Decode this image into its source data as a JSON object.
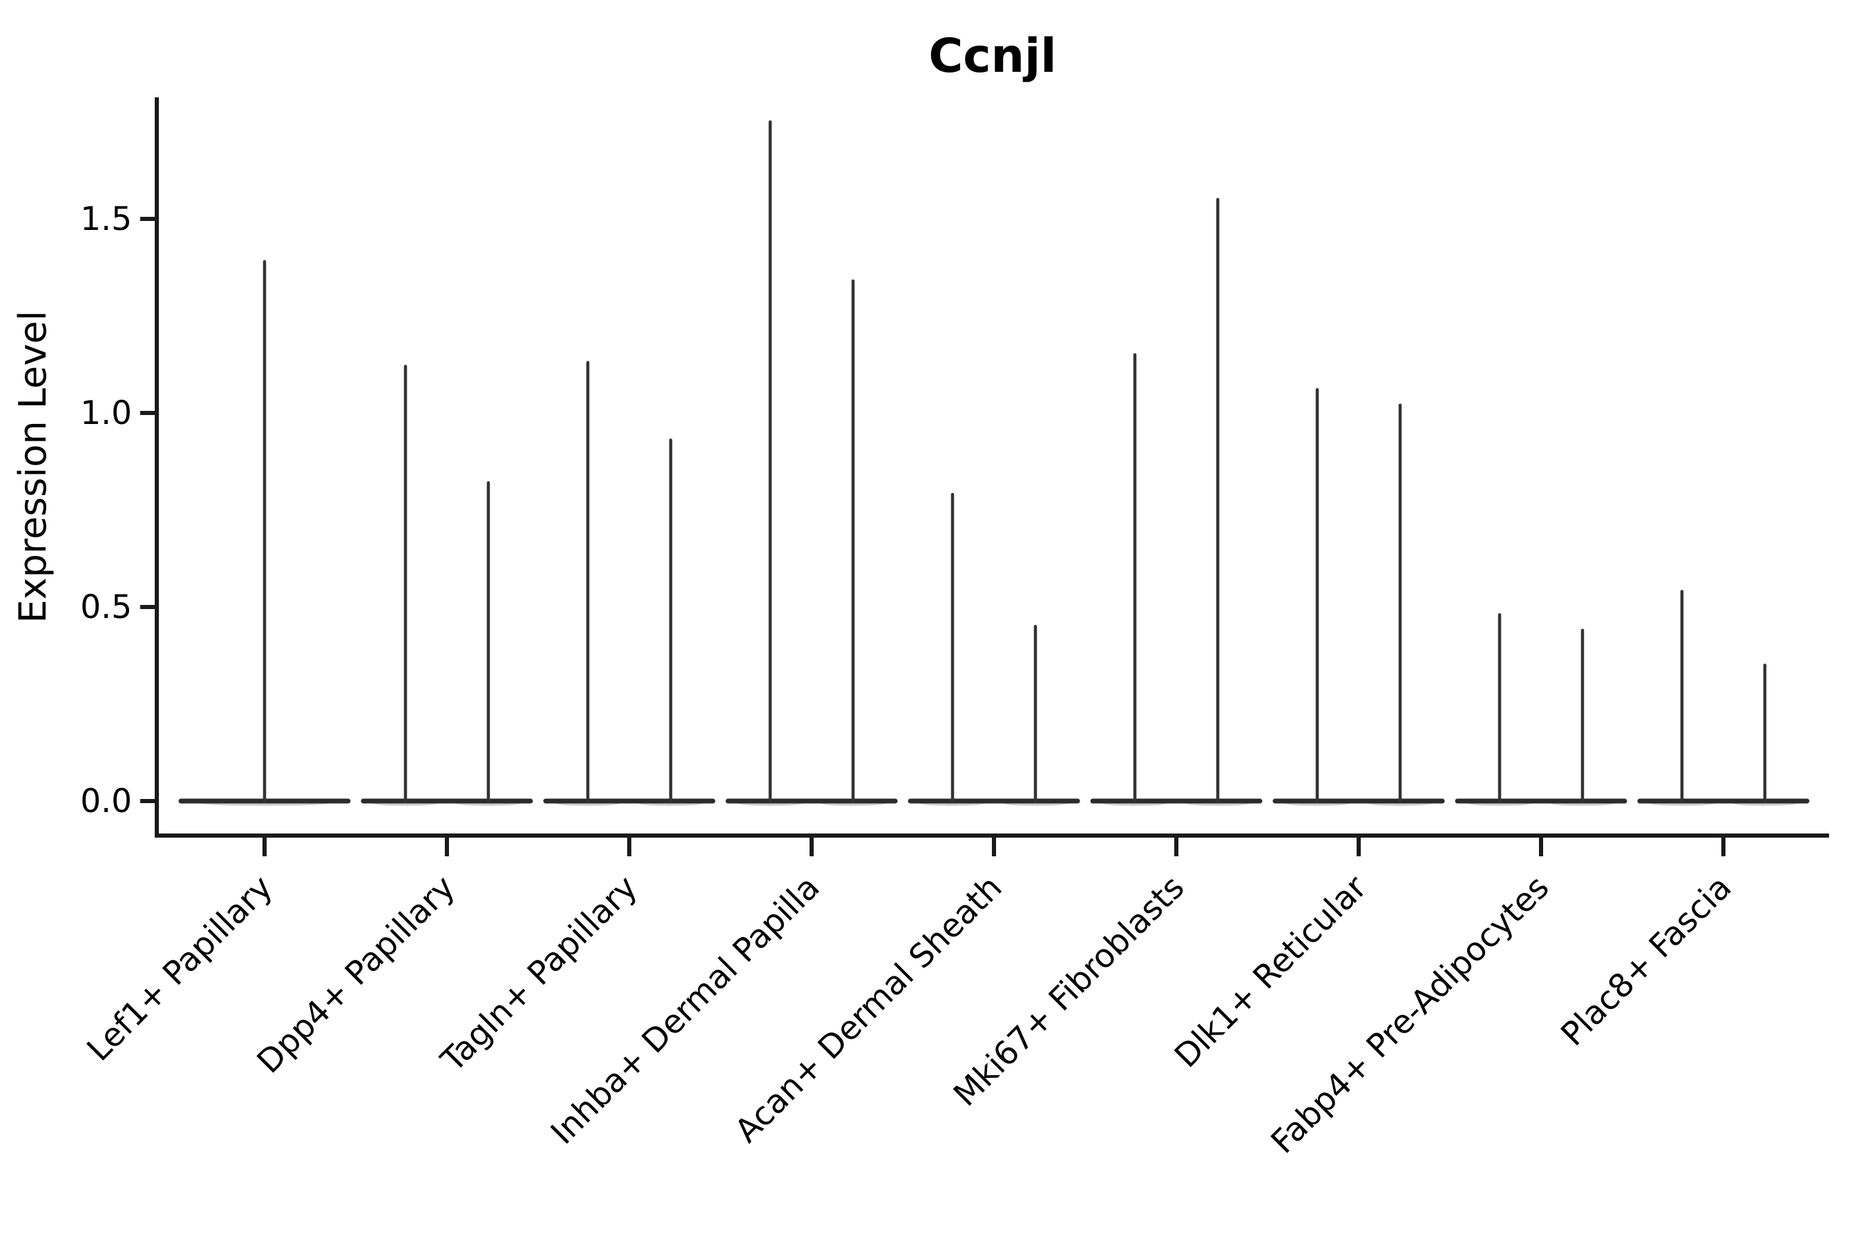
{
  "title": "Ccnjl",
  "axes": {
    "ylabel": "Expression Level",
    "ytick_labels": [
      "0.0",
      "0.5",
      "1.0",
      "1.5"
    ],
    "ytick_values": [
      0.0,
      0.5,
      1.0,
      1.5
    ]
  },
  "style": {
    "background_color": "#ffffff",
    "spine_color": "#1a1a1a",
    "tick_color": "#1a1a1a",
    "violin_edge_color": "#333333",
    "violin_base_color": "#2b2b2b",
    "violin_shadow_color": "#9a9a9a",
    "text_color": "#000000"
  },
  "chart_data": {
    "type": "violin",
    "title": "Ccnjl",
    "xlabel": "",
    "ylabel": "Expression Level",
    "ylim": [
      -0.09,
      1.81
    ],
    "yticks": [
      0.0,
      0.5,
      1.0,
      1.5
    ],
    "grid": false,
    "legend": false,
    "description": "Collapsed single-cell expression violins (near-zero density bodies flattened at 0 with thin spikes up to each violin's maximum expression value). First category has one violin; all others have two violins side by side.",
    "categories": [
      "Lef1+ Papillary",
      "Dpp4+ Papillary",
      "Tagln+ Papillary",
      "Inhba+ Dermal Papilla",
      "Acan+ Dermal Sheath",
      "Mki67+ Fibroblasts",
      "Dlk1+ Reticular",
      "Fabp4+ Pre-Adipocytes",
      "Plac8+ Fascia"
    ],
    "groups": [
      {
        "label": "Lef1+ Papillary",
        "violin_maxima": [
          1.39
        ],
        "violin_baseline": 0.0
      },
      {
        "label": "Dpp4+ Papillary",
        "violin_maxima": [
          1.12,
          0.82
        ],
        "violin_baseline": 0.0
      },
      {
        "label": "Tagln+ Papillary",
        "violin_maxima": [
          1.13,
          0.93
        ],
        "violin_baseline": 0.0
      },
      {
        "label": "Inhba+ Dermal Papilla",
        "violin_maxima": [
          1.75,
          1.34
        ],
        "violin_baseline": 0.0
      },
      {
        "label": "Acan+ Dermal Sheath",
        "violin_maxima": [
          0.79,
          0.45
        ],
        "violin_baseline": 0.0
      },
      {
        "label": "Mki67+ Fibroblasts",
        "violin_maxima": [
          1.15,
          1.55
        ],
        "violin_baseline": 0.0
      },
      {
        "label": "Dlk1+ Reticular",
        "violin_maxima": [
          1.06,
          1.02
        ],
        "violin_baseline": 0.0
      },
      {
        "label": "Fabp4+ Pre-Adipocytes",
        "violin_maxima": [
          0.48,
          0.44
        ],
        "violin_baseline": 0.0
      },
      {
        "label": "Plac8+ Fascia",
        "violin_maxima": [
          0.54,
          0.35
        ],
        "violin_baseline": 0.0
      }
    ]
  }
}
